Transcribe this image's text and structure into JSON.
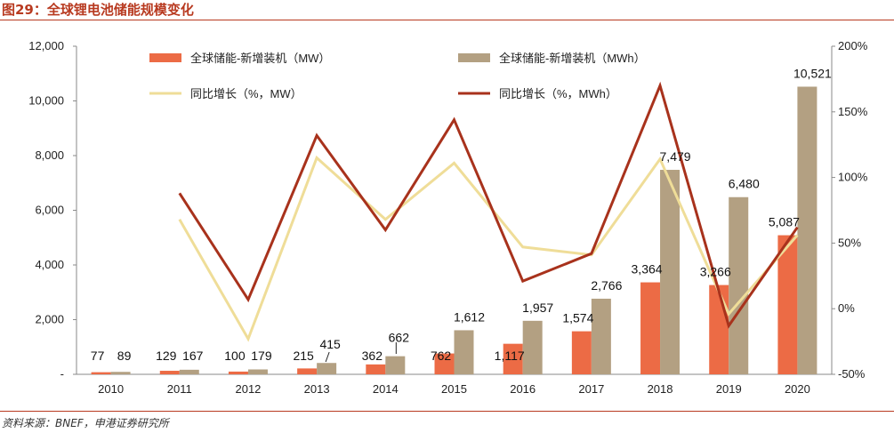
{
  "title": "图29：全球锂电池储能规模变化",
  "source": "资料来源：BNEF，申港证券研究所",
  "chart_data": {
    "type": "bar",
    "categories": [
      "2010",
      "2011",
      "2012",
      "2013",
      "2014",
      "2015",
      "2016",
      "2017",
      "2018",
      "2019",
      "2020"
    ],
    "left_axis": {
      "range": [
        0,
        12000
      ],
      "ticks": [
        "-",
        "2,000",
        "4,000",
        "6,000",
        "8,000",
        "10,000",
        "12,000"
      ]
    },
    "right_axis": {
      "range": [
        -50,
        200
      ],
      "ticks": [
        "-50%",
        "0%",
        "50%",
        "100%",
        "150%",
        "200%"
      ]
    },
    "series": [
      {
        "name": "全球储能-新增装机（MW）",
        "kind": "bar",
        "axis": "left",
        "color": "#ec6b45",
        "values": [
          77,
          129,
          100,
          215,
          362,
          762,
          1117,
          1574,
          3364,
          3266,
          5087
        ],
        "labels": [
          "77",
          "129",
          "100",
          "215",
          "362",
          "762",
          "1,117",
          "1,574",
          "3,364",
          "3,266",
          "5,087"
        ]
      },
      {
        "name": "全球储能-新增装机（MWh）",
        "kind": "bar",
        "axis": "left",
        "color": "#b3a082",
        "values": [
          89,
          167,
          179,
          415,
          662,
          1612,
          1957,
          2766,
          7479,
          6480,
          10521
        ],
        "labels": [
          "89",
          "167",
          "179",
          "415",
          "662",
          "1,612",
          "1,957",
          "2,766",
          "7,479",
          "6,480",
          "10,521"
        ]
      },
      {
        "name": "同比增长（%，MW）",
        "kind": "line",
        "axis": "right",
        "color": "#efdd98",
        "values": [
          null,
          68,
          -23,
          115,
          68,
          111,
          47,
          41,
          114,
          -4,
          56
        ]
      },
      {
        "name": "同比增长（%，MWh）",
        "kind": "line",
        "axis": "right",
        "color": "#a8321c",
        "values": [
          null,
          88,
          7,
          132,
          60,
          144,
          21,
          42,
          170,
          -13,
          62
        ]
      }
    ],
    "legend_position": "top",
    "grid": false
  }
}
